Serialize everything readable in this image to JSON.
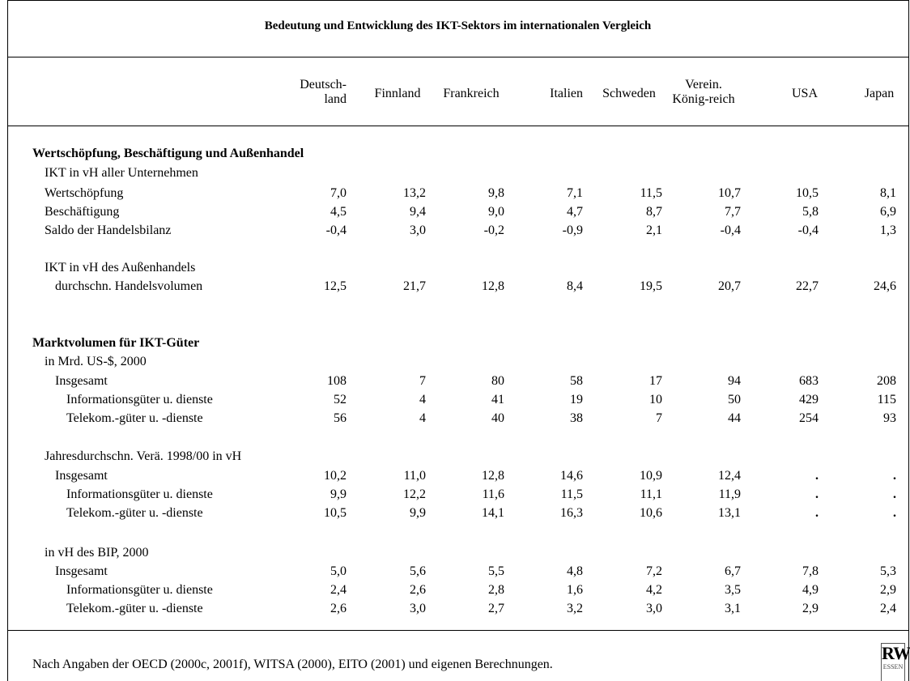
{
  "title": "Bedeutung und Entwicklung des IKT-Sektors im internationalen Vergleich",
  "columns": [
    [
      "Deutsch-",
      "land"
    ],
    [
      "Finnland"
    ],
    [
      "Frankreich"
    ],
    [
      "Italien"
    ],
    [
      "Schweden"
    ],
    [
      "Verein.",
      "König-reich"
    ],
    [
      "USA"
    ],
    [
      "Japan"
    ]
  ],
  "sections": [
    {
      "heading": "Wertschöpfung, Beschäftigung und Außenhandel",
      "rows": [
        {
          "label": "IKT in vH aller Unternehmen"
        },
        {
          "label": "Wertschöpfung",
          "values": [
            "7,0",
            "13,2",
            "9,8",
            "7,1",
            "11,5",
            "10,7",
            "10,5",
            "8,1"
          ]
        },
        {
          "label": "Beschäftigung",
          "values": [
            "4,5",
            "9,4",
            "9,0",
            "4,7",
            "8,7",
            "7,7",
            "5,8",
            "6,9"
          ]
        },
        {
          "label": "Saldo der Handelsbilanz",
          "values": [
            "-0,4",
            "3,0",
            "-0,2",
            "-0,9",
            "2,1",
            "-0,4",
            "-0,4",
            "1,3"
          ]
        },
        {
          "label": "IKT in vH des Außenhandels"
        },
        {
          "label": "durchschn. Handelsvolumen",
          "values": [
            "12,5",
            "21,7",
            "12,8",
            "8,4",
            "19,5",
            "20,7",
            "22,7",
            "24,6"
          ]
        }
      ]
    },
    {
      "heading": "Marktvolumen für IKT-Güter",
      "rows": [
        {
          "label": "in Mrd. US-$, 2000"
        },
        {
          "label": "Insgesamt",
          "values": [
            "108",
            "7",
            "80",
            "58",
            "17",
            "94",
            "683",
            "208"
          ]
        },
        {
          "label": "Informationsgüter u. dienste",
          "values": [
            "52",
            "4",
            "41",
            "19",
            "10",
            "50",
            "429",
            "115"
          ]
        },
        {
          "label": "Telekom.-güter u. -dienste",
          "values": [
            "56",
            "4",
            "40",
            "38",
            "7",
            "44",
            "254",
            "93"
          ]
        },
        {
          "label": "Jahresdurchschn. Verä. 1998/00 in vH"
        },
        {
          "label": "Insgesamt",
          "values": [
            "10,2",
            "11,0",
            "12,8",
            "14,6",
            "10,9",
            "12,4",
            ".",
            "."
          ]
        },
        {
          "label": "Informationsgüter u. dienste",
          "values": [
            "9,9",
            "12,2",
            "11,6",
            "11,5",
            "11,1",
            "11,9",
            ".",
            "."
          ]
        },
        {
          "label": "Telekom.-güter u. -dienste",
          "values": [
            "10,5",
            "9,9",
            "14,1",
            "16,3",
            "10,6",
            "13,1",
            ".",
            "."
          ]
        },
        {
          "label": "in vH des BIP, 2000"
        },
        {
          "label": "Insgesamt",
          "values": [
            "5,0",
            "5,6",
            "5,5",
            "4,8",
            "7,2",
            "6,7",
            "7,8",
            "5,3"
          ]
        },
        {
          "label": "Informationsgüter u. dienste",
          "values": [
            "2,4",
            "2,6",
            "2,8",
            "1,6",
            "4,2",
            "3,5",
            "4,9",
            "2,9"
          ]
        },
        {
          "label": "Telekom.-güter u. -dienste",
          "values": [
            "2,6",
            "3,0",
            "2,7",
            "3,2",
            "3,0",
            "3,1",
            "2,9",
            "2,4"
          ]
        }
      ]
    }
  ],
  "footnote": "Nach Angaben der OECD (2000c, 2001f), WITSA (2000), EITO (2001) und eigenen Berechnungen.",
  "logo": {
    "text": "RWI",
    "sub": "ESSEN"
  }
}
